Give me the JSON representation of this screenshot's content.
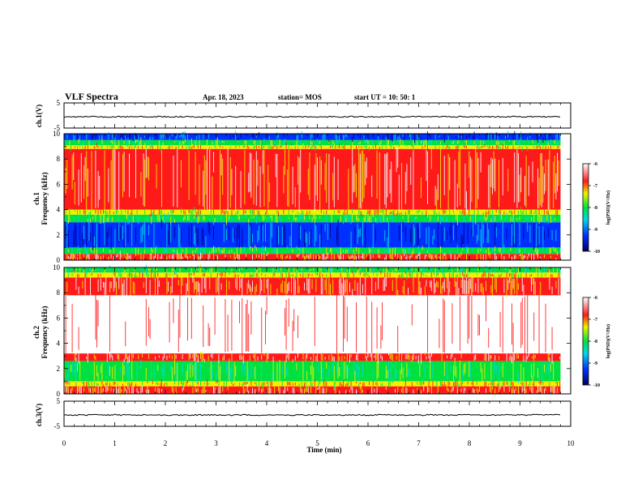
{
  "header": {
    "title": "VLF Spectra",
    "date": "Apr. 18, 2023",
    "station": "station= MOS",
    "start": "start  UT =   10: 50: 1"
  },
  "colors": {
    "white": "#ffffff",
    "red": "#ff1a1a",
    "yellow": "#f0f000",
    "green": "#00e040",
    "cyan": "#00d8e8",
    "blue": "#0030ff",
    "navy": "#000090",
    "trace": "#000000"
  },
  "chart_data": [
    {
      "type": "line",
      "panel": "ch1-voltage",
      "ylabel": "ch.1(V)",
      "ylim": [
        -5,
        5
      ],
      "yticks": [
        "5",
        "-5"
      ],
      "xlim": [
        0,
        10
      ],
      "series": [
        {
          "x": [
            0,
            9.8
          ],
          "y": [
            -0.5,
            -0.5
          ]
        }
      ]
    },
    {
      "type": "heatmap",
      "panel": "ch1-spectrogram",
      "ylabel": "ch.1\nFrequency  (kHz)",
      "ylim": [
        0,
        10
      ],
      "yticks": [
        "0",
        "2",
        "4",
        "6",
        "8",
        "10"
      ],
      "xlim": [
        0,
        10
      ],
      "data_end_min": 9.8,
      "bands_khz": [
        {
          "from": 0,
          "to": 0.5,
          "level": "red"
        },
        {
          "from": 0.5,
          "to": 1.0,
          "level": "green"
        },
        {
          "from": 1.0,
          "to": 3.0,
          "level": "blue"
        },
        {
          "from": 3.0,
          "to": 3.6,
          "level": "green"
        },
        {
          "from": 3.6,
          "to": 4.0,
          "level": "yellow"
        },
        {
          "from": 4.0,
          "to": 8.8,
          "level": "red"
        },
        {
          "from": 8.8,
          "to": 9.1,
          "level": "yellow"
        },
        {
          "from": 9.1,
          "to": 9.5,
          "level": "green"
        },
        {
          "from": 9.5,
          "to": 10,
          "level": "blue"
        }
      ],
      "colorbar": {
        "label": "log(PSD)(V²/Hz)",
        "ticks": [
          "-6",
          "-7",
          "-8",
          "-9",
          "-10"
        ],
        "range": [
          -10,
          -6
        ]
      }
    },
    {
      "type": "heatmap",
      "panel": "ch2-spectrogram",
      "ylabel": "ch.2\nFrequency  (kHz)",
      "ylim": [
        0,
        10
      ],
      "yticks": [
        "0",
        "2",
        "4",
        "6",
        "8",
        "10"
      ],
      "xlim": [
        0,
        10
      ],
      "data_end_min": 9.8,
      "bands_khz": [
        {
          "from": 0,
          "to": 0.6,
          "level": "red"
        },
        {
          "from": 0.6,
          "to": 1.0,
          "level": "yellow"
        },
        {
          "from": 1.0,
          "to": 2.6,
          "level": "green"
        },
        {
          "from": 2.6,
          "to": 3.2,
          "level": "red"
        },
        {
          "from": 3.2,
          "to": 7.8,
          "level": "white"
        },
        {
          "from": 7.8,
          "to": 9.2,
          "level": "red"
        },
        {
          "from": 9.2,
          "to": 9.6,
          "level": "yellow"
        },
        {
          "from": 9.6,
          "to": 10,
          "level": "green"
        }
      ],
      "colorbar": {
        "label": "log(PSD)(V²/Hz)",
        "ticks": [
          "-6",
          "-7",
          "-8",
          "-9",
          "-10"
        ],
        "range": [
          -10,
          -6
        ]
      }
    },
    {
      "type": "line",
      "panel": "ch3-voltage",
      "ylabel": "ch.3(V)",
      "ylim": [
        -5,
        5
      ],
      "yticks": [
        "5",
        "-5"
      ],
      "xlim": [
        0,
        10
      ],
      "xlabel": "Time  (min)",
      "xticks": [
        "0",
        "1",
        "2",
        "3",
        "4",
        "5",
        "6",
        "7",
        "8",
        "9",
        "10"
      ],
      "series": [
        {
          "x": [
            0,
            9.8
          ],
          "y": [
            -0.5,
            -0.5
          ]
        }
      ]
    }
  ]
}
